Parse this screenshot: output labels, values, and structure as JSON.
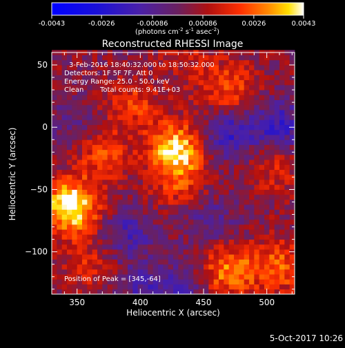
{
  "chart_data": {
    "type": "heatmap",
    "title": "Reconstructed RHESSI Image",
    "colorbar": {
      "ticks": [
        "-0.0043",
        "-0.0026",
        "-0.00086",
        "0.00086",
        "0.0026",
        "0.0043"
      ],
      "tick_values": [
        -0.0043,
        -0.0026,
        -0.00086,
        0.00086,
        0.0026,
        0.0043
      ],
      "range": [
        -0.0043,
        0.0043
      ],
      "unit_prefix": "(photons cm",
      "unit_exp1": "-2",
      "unit_mid": " s",
      "unit_exp2": "-1",
      "unit_after": " asec",
      "unit_exp3": "-2",
      "unit_close": ")"
    },
    "annotations": {
      "time_range": "3-Feb-2016 18:40:32.000 to 18:50:32.000",
      "detectors": "Detectors: 1F 5F 7F, Att 0",
      "energy": "Energy Range: 25.0 - 50.0 keV",
      "algorithm": "Clean",
      "counts": "Total counts: 9.41E+03",
      "peak": "Position of Peak = [345,-64]"
    },
    "xlabel": "Heliocentric X (arcsec)",
    "ylabel": "Heliocentric Y (arcsec)",
    "xlim": [
      330,
      522
    ],
    "ylim": [
      -134,
      60
    ],
    "xticks": [
      350,
      400,
      450,
      500
    ],
    "yticks": [
      50,
      0,
      -50,
      -100
    ],
    "xtick_labels": [
      "350",
      "400",
      "450",
      "500"
    ],
    "ytick_labels": [
      "50",
      "0",
      "−50",
      "−100"
    ],
    "grid": false,
    "colormap": "blue-purple-red-yellow-white",
    "peaks": [
      {
        "x": 428,
        "y": -18,
        "v": 0.0036
      },
      {
        "x": 345,
        "y": -64,
        "v": 0.0043
      },
      {
        "x": 395,
        "y": 18,
        "v": 0.0016
      },
      {
        "x": 370,
        "y": -22,
        "v": 0.0018
      },
      {
        "x": 470,
        "y": -115,
        "v": 0.0026
      },
      {
        "x": 510,
        "y": -112,
        "v": 0.0021
      },
      {
        "x": 470,
        "y": 30,
        "v": 0.002
      },
      {
        "x": 505,
        "y": -30,
        "v": 0.0013
      },
      {
        "x": 360,
        "y": -110,
        "v": 0.0012
      },
      {
        "x": 430,
        "y": -45,
        "v": 0.0014
      },
      {
        "x": 440,
        "y": 55,
        "v": 0.0009
      }
    ],
    "troughs": [
      {
        "x": 470,
        "y": -5,
        "v": -0.0022
      },
      {
        "x": 510,
        "y": 0,
        "v": -0.0022
      },
      {
        "x": 390,
        "y": -85,
        "v": -0.0016
      },
      {
        "x": 455,
        "y": -75,
        "v": -0.0012
      },
      {
        "x": 345,
        "y": 0,
        "v": -0.001
      },
      {
        "x": 430,
        "y": -130,
        "v": -0.0014
      },
      {
        "x": 400,
        "y": -130,
        "v": -0.0012
      }
    ]
  },
  "footer": {
    "date": "5-Oct-2017 10:26"
  }
}
